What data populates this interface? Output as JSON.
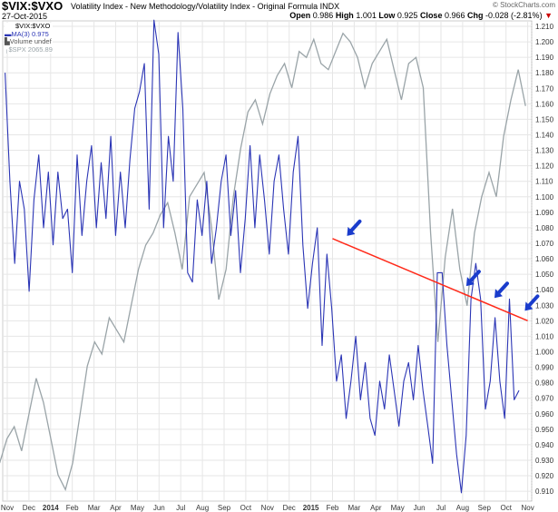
{
  "header": {
    "symbol": "$VIX:$VXO",
    "description": "Volatility Index - New Methodology/Volatility Index - Original Formula",
    "exchange": "INDX",
    "date": "27-Oct-2015",
    "brand": "© StockCharts.com",
    "open_label": "Open",
    "open": "0.986",
    "high_label": "High",
    "high": "1.001",
    "low_label": "Low",
    "low": "0.925",
    "close_label": "Close",
    "close": "0.966",
    "chg_label": "Chg",
    "chg": "-0.028 (-2.81%)",
    "down_arrow": "▼"
  },
  "legend": {
    "l1": "$VIX:$VXO",
    "l2": "MA(3) 0.975",
    "l3": "Volume undef",
    "l4": "$SPX 2065.89"
  },
  "colors": {
    "ratio": "#2b35b5",
    "spx": "#9aa4a8",
    "trend": "#ff2a1a",
    "arrow": "#1a3ccc",
    "grid": "#e6e6e6"
  },
  "chart_data": {
    "type": "line",
    "ylabel": "$VIX:$VXO",
    "ylim": [
      0.905,
      1.215
    ],
    "yticks": [
      "1.210",
      "1.200",
      "1.190",
      "1.180",
      "1.170",
      "1.160",
      "1.150",
      "1.140",
      "1.130",
      "1.120",
      "1.110",
      "1.100",
      "1.090",
      "1.080",
      "1.070",
      "1.060",
      "1.050",
      "1.040",
      "1.030",
      "1.020",
      "1.010",
      "1.000",
      "0.990",
      "0.980",
      "0.970",
      "0.960",
      "0.950",
      "0.940",
      "0.930",
      "0.920",
      "0.910"
    ],
    "xticks": [
      "Nov",
      "Dec",
      "2014",
      "Feb",
      "Mar",
      "Apr",
      "May",
      "Jun",
      "Jul",
      "Aug",
      "Sep",
      "Oct",
      "Nov",
      "Dec",
      "2015",
      "Feb",
      "Mar",
      "Apr",
      "May",
      "Jun",
      "Jul",
      "Aug",
      "Sep",
      "Oct",
      "Nov"
    ],
    "xlim_months": [
      -0.35,
      24.1
    ],
    "series": [
      {
        "name": "$VIX:$VXO MA(3)",
        "x_start": -0.1,
        "x_end": 23.6,
        "values": [
          1.18,
          1.11,
          1.057,
          1.11,
          1.092,
          1.039,
          1.098,
          1.127,
          1.08,
          1.116,
          1.069,
          1.116,
          1.086,
          1.092,
          1.051,
          1.127,
          1.075,
          1.11,
          1.133,
          1.08,
          1.122,
          1.086,
          1.139,
          1.075,
          1.116,
          1.08,
          1.124,
          1.157,
          1.168,
          1.186,
          1.092,
          1.214,
          1.192,
          1.08,
          1.139,
          1.11,
          1.206,
          1.157,
          1.051,
          1.045,
          1.098,
          1.075,
          1.11,
          1.057,
          1.08,
          1.11,
          1.127,
          1.075,
          1.104,
          1.051,
          1.086,
          1.133,
          1.08,
          1.127,
          1.098,
          1.063,
          1.11,
          1.127,
          1.092,
          1.063,
          1.116,
          1.139,
          1.069,
          1.028,
          1.057,
          1.08,
          1.004,
          1.063,
          1.028,
          0.981,
          0.998,
          0.957,
          0.981,
          1.01,
          0.969,
          0.993,
          0.957,
          0.946,
          0.981,
          0.963,
          0.998,
          0.975,
          0.952,
          0.981,
          0.993,
          0.969,
          1.004,
          0.975,
          0.952,
          0.928,
          1.051,
          1.051,
          1.004,
          0.969,
          0.934,
          0.909,
          0.946,
          1.034,
          1.057,
          1.034,
          0.963,
          0.981,
          1.022,
          0.981,
          0.957,
          1.034,
          0.969,
          0.975
        ]
      },
      {
        "name": "$SPX",
        "x_start": -0.35,
        "x_end": 23.9,
        "values": [
          1770,
          1790,
          1800,
          1780,
          1810,
          1840,
          1820,
          1790,
          1760,
          1748,
          1770,
          1810,
          1850,
          1870,
          1860,
          1890,
          1880,
          1870,
          1900,
          1930,
          1950,
          1960,
          1975,
          1985,
          1960,
          1930,
          1990,
          2000,
          2010,
          1965,
          1905,
          1930,
          1990,
          2030,
          2060,
          2070,
          2050,
          2075,
          2090,
          2100,
          2080,
          2110,
          2105,
          2120,
          2100,
          2095,
          2110,
          2125,
          2118,
          2105,
          2080,
          2100,
          2110,
          2120,
          2095,
          2070,
          2100,
          2105,
          2080,
          1960,
          1870,
          1940,
          1980,
          1930,
          1900,
          1960,
          1990,
          2010,
          1990,
          2040,
          2070,
          2095,
          2065
        ]
      }
    ],
    "trendline": {
      "from": {
        "month": 15.0,
        "value": 1.073
      },
      "to": {
        "month": 24.0,
        "value": 1.02
      }
    },
    "annotations": {
      "arrows_at_months": [
        15.5,
        21.0,
        22.3,
        23.7
      ]
    }
  }
}
